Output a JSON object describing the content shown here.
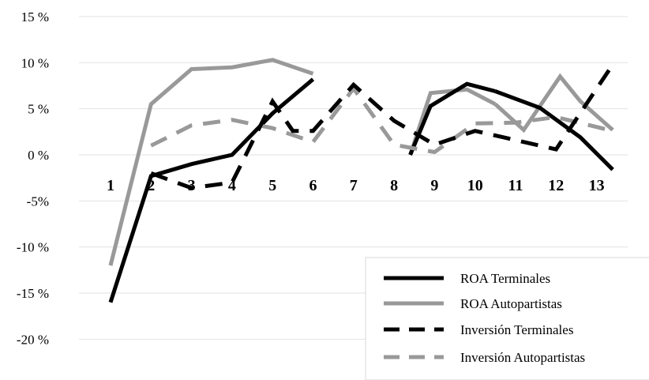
{
  "chart_data": {
    "type": "line",
    "title": "",
    "xlabel": "",
    "ylabel": "",
    "ylim": [
      -20,
      15
    ],
    "yticks": [
      15,
      10,
      5,
      0,
      -5,
      -10,
      -15,
      -20
    ],
    "ytick_labels": [
      "15 %",
      "10 %",
      "5 %",
      "0 %",
      "-5%",
      "-10 %",
      "-15 %",
      "-20 %"
    ],
    "categories": [
      "1",
      "2",
      "3",
      "4",
      "5",
      "6",
      "7",
      "8",
      "9",
      "10",
      "11",
      "12",
      "13"
    ],
    "grid": true,
    "legend_position": "bottom-right",
    "series": [
      {
        "name": "ROA Terminales",
        "color": "#000000",
        "dash": "solid",
        "values": [
          -16,
          -2.3,
          -1,
          0,
          4.5,
          8.2,
          null,
          null,
          null,
          null,
          null,
          null,
          null
        ],
        "segments": [
          {
            "x": [
              1,
              2,
              3,
              4,
              5,
              6
            ],
            "y": [
              -16,
              -2.3,
              -1,
              0,
              4.5,
              8.2
            ]
          },
          {
            "x": [
              8.4,
              8.9,
              9.8,
              10.5
            ],
            "y": [
              0,
              5.3,
              7.7,
              6.9
            ]
          },
          {
            "x": [
              10.5,
              11.6,
              12.6,
              13.4
            ],
            "y": [
              6.9,
              5.1,
              1.9,
              -1.6
            ]
          }
        ]
      },
      {
        "name": "ROA Autopartistas",
        "color": "#999999",
        "dash": "solid",
        "values": [
          -12,
          5.5,
          9.3,
          9.5,
          10.3,
          8.8,
          null,
          null,
          null,
          null,
          null,
          null,
          null
        ],
        "segments": [
          {
            "x": [
              1,
              2,
              3,
              4,
              5,
              6
            ],
            "y": [
              -12,
              5.5,
              9.3,
              9.5,
              10.3,
              8.8
            ]
          },
          {
            "x": [
              8.4,
              8.9,
              9.8,
              10.5
            ],
            "y": [
              0,
              6.7,
              7.1,
              5.5
            ]
          },
          {
            "x": [
              10.5,
              11.2,
              12.1,
              12.6,
              13.4
            ],
            "y": [
              5.5,
              2.7,
              8.5,
              5.8,
              2.7
            ]
          }
        ]
      },
      {
        "name": "Inversión Terminales",
        "color": "#000000",
        "dash": "dashed",
        "values": [
          null,
          -2,
          -3.6,
          -3,
          5.8,
          2.6,
          7.6,
          3.7,
          1.1,
          2.6,
          1.6,
          0.6,
          9.8
        ],
        "segments": [
          {
            "x": [
              2,
              3,
              4,
              5,
              5.5,
              6,
              7,
              8,
              9,
              10,
              11,
              12,
              13.4
            ],
            "y": [
              -2,
              -3.6,
              -3,
              5.8,
              2.6,
              2.6,
              7.6,
              3.7,
              1.1,
              2.6,
              1.6,
              0.6,
              9.8
            ]
          }
        ]
      },
      {
        "name": "Inversión Autopartistas",
        "color": "#999999",
        "dash": "dashed",
        "values": [
          null,
          1,
          3.2,
          3.8,
          2.9,
          1.4,
          7.2,
          1.1,
          0.3,
          3.4,
          3.5,
          4.1,
          2.6
        ],
        "segments": [
          {
            "x": [
              2,
              3,
              4,
              5,
              6,
              7,
              8,
              9,
              10,
              11,
              12,
              13.4
            ],
            "y": [
              1,
              3.2,
              3.8,
              2.9,
              1.4,
              7.2,
              1.1,
              0.3,
              3.4,
              3.5,
              4.1,
              2.6
            ]
          }
        ]
      }
    ]
  }
}
